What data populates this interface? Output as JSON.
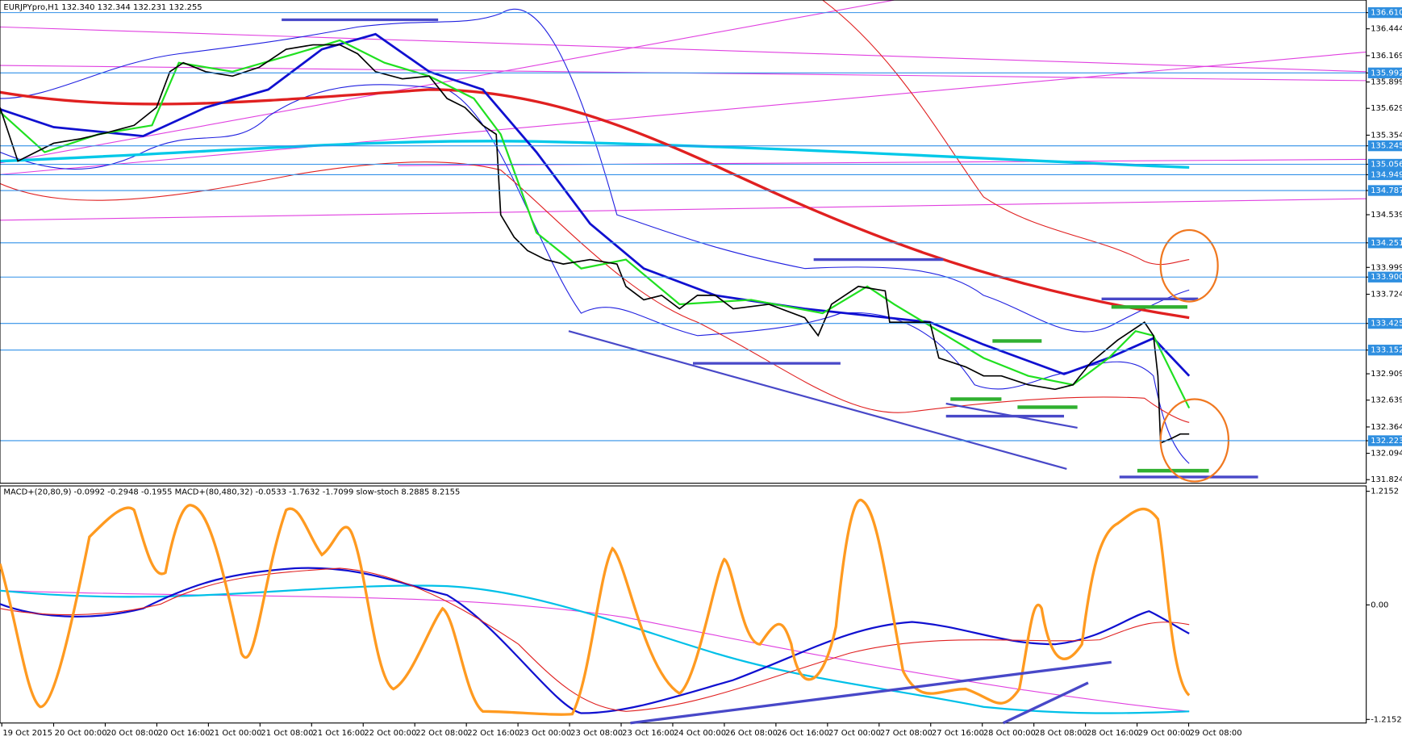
{
  "header": {
    "title": "EURJPYpro,H1  132.340 132.344 132.231 132.255"
  },
  "price_axis": [
    {
      "label": "136.610",
      "highlighted": true
    },
    {
      "label": "136.444",
      "highlighted": false
    },
    {
      "label": "136.169",
      "highlighted": false
    },
    {
      "label": "135.992",
      "highlighted": true
    },
    {
      "label": "135.899",
      "highlighted": false
    },
    {
      "label": "135.629",
      "highlighted": false
    },
    {
      "label": "135.354",
      "highlighted": false
    },
    {
      "label": "135.245",
      "highlighted": true
    },
    {
      "label": "135.056",
      "highlighted": true
    },
    {
      "label": "134.949",
      "highlighted": true
    },
    {
      "label": "134.787",
      "highlighted": true
    },
    {
      "label": "134.539",
      "highlighted": false
    },
    {
      "label": "134.251",
      "highlighted": true
    },
    {
      "label": "133.999",
      "highlighted": false
    },
    {
      "label": "133.900",
      "highlighted": true
    },
    {
      "label": "133.724",
      "highlighted": false
    },
    {
      "label": "133.425",
      "highlighted": true
    },
    {
      "label": "133.152",
      "highlighted": true
    },
    {
      "label": "132.909",
      "highlighted": false
    },
    {
      "label": "132.639",
      "highlighted": false
    },
    {
      "label": "132.364",
      "highlighted": false
    },
    {
      "label": "132.223",
      "highlighted": true
    },
    {
      "label": "132.094",
      "highlighted": false
    },
    {
      "label": "131.824",
      "highlighted": false
    }
  ],
  "indicator": {
    "title": "MACD+(20,80,9) -0.0992 -0.2948 -0.1955  MACD+(80,480,32) -0.0533 -1.7632 -1.7099  slow-stoch 8.2885 8.2155",
    "axis": [
      "1.2152",
      "0.00",
      "-1.2152"
    ]
  },
  "time_axis": [
    "19 Oct 2015",
    "20 Oct 00:00",
    "20 Oct 08:00",
    "20 Oct 16:00",
    "21 Oct 00:00",
    "21 Oct 08:00",
    "21 Oct 16:00",
    "22 Oct 00:00",
    "22 Oct 08:00",
    "22 Oct 16:00",
    "23 Oct 00:00",
    "23 Oct 08:00",
    "23 Oct 16:00",
    "24 Oct 00:00",
    "26 Oct 08:00",
    "26 Oct 16:00",
    "27 Oct 00:00",
    "27 Oct 08:00",
    "27 Oct 16:00",
    "28 Oct 00:00",
    "28 Oct 08:00",
    "28 Oct 16:00",
    "29 Oct 00:00",
    "29 Oct 08:00"
  ]
}
